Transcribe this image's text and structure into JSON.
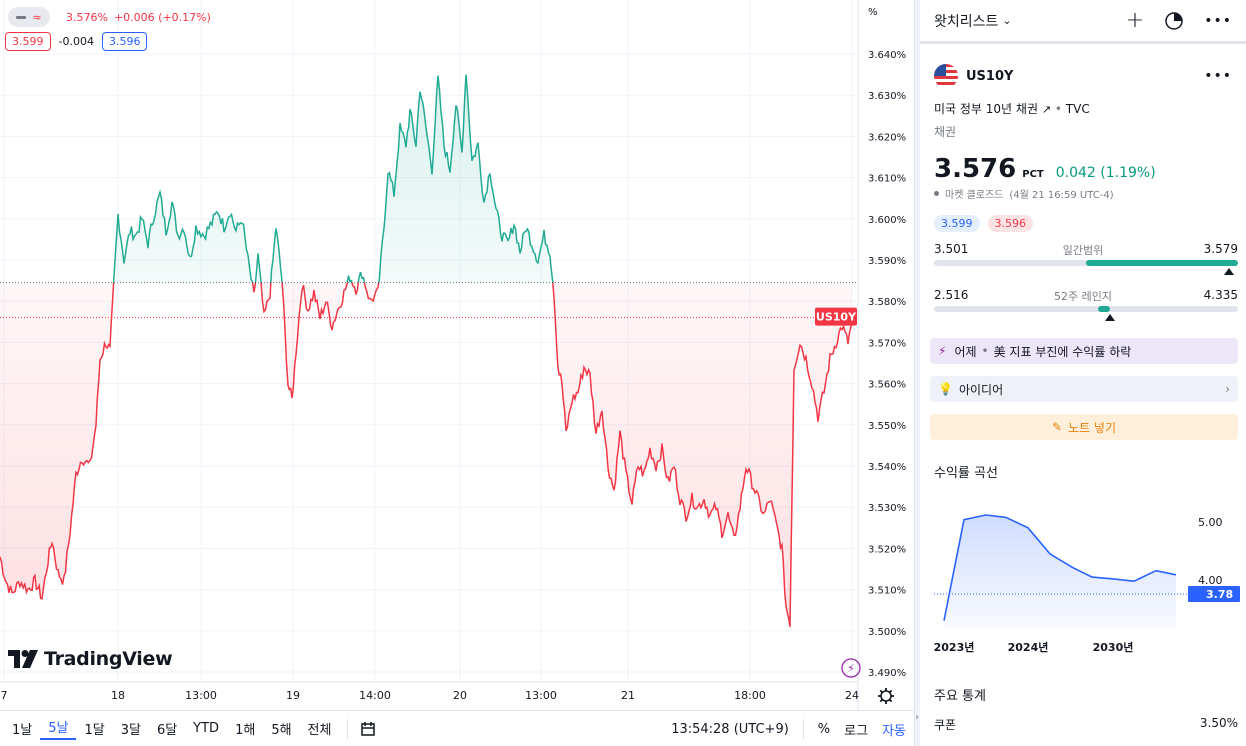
{
  "chart": {
    "toggle_glyph": "≈",
    "legend_value": "3.576%",
    "legend_change": "+0.006 (+0.17%)",
    "bid": "3.599",
    "spread": "-0.004",
    "ask": "3.596",
    "y_unit": "%",
    "symbol_tag": "US10Y",
    "logo_text": "TradingView",
    "y_axis_labels": [
      "3.640%",
      "3.630%",
      "3.620%",
      "3.610%",
      "3.600%",
      "3.590%",
      "3.580%",
      "3.570%",
      "3.560%",
      "3.550%",
      "3.540%",
      "3.530%",
      "3.520%",
      "3.510%",
      "3.500%",
      "3.490%"
    ],
    "x_axis_labels": [
      "7",
      "18",
      "13:00",
      "19",
      "14:00",
      "20",
      "13:00",
      "21",
      "18:00",
      "24"
    ],
    "colors": {
      "up": "#22ab94",
      "down": "#f23645",
      "accent": "#2962ff"
    }
  },
  "bottom_bar": {
    "ranges": [
      "1날",
      "5날",
      "1달",
      "3달",
      "6달",
      "YTD",
      "1해",
      "5해",
      "전체"
    ],
    "active_range": "5날",
    "clock": "13:54:28 (UTC+9)",
    "percent": "%",
    "log": "로그",
    "auto": "자동"
  },
  "watchlist": {
    "title": "왓치리스트",
    "symbol": "US10Y",
    "description": "미국 정부 10년 채권",
    "source": "TVC",
    "category": "채권",
    "price": "3.576",
    "unit": "PCT",
    "change": "0.042 (1.19%)",
    "market_status": "마켓 클로즈드",
    "market_time": "(4월 21 16:59 UTC-4)",
    "bid": "3.599",
    "ask": "3.596",
    "day_low": "3.501",
    "day_label": "일간범위",
    "day_high": "3.579",
    "day_fill": 0.65,
    "day_marker": 0.97,
    "week_low": "2.516",
    "week_label": "52주 레인지",
    "week_high": "4.335",
    "week_marker": 0.58,
    "news": "어제",
    "news_text": "美 지표 부진에 수익률 하락",
    "ideas": "아이디어",
    "note_button": "노트 넣기",
    "yield_curve_title": "수익률 곡선",
    "key_stats_title": "주요 통계",
    "coupon_label": "쿠폰",
    "coupon_value": "3.50%"
  },
  "yield_curve": {
    "x_labels": [
      "2023년",
      "2024년",
      "2030년"
    ],
    "y_labels": [
      "5.00",
      "4.00"
    ],
    "current_label": "3.78"
  }
}
